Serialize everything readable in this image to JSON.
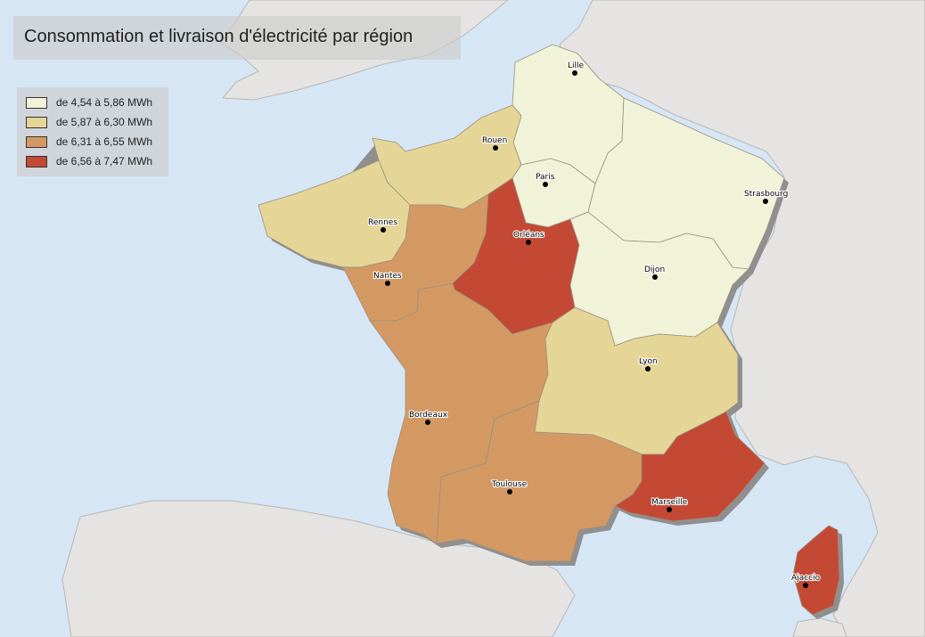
{
  "title": "Consommation et livraison d'électricité par région",
  "legend": [
    {
      "label": "de 4,54 à 5,86 MWh",
      "color": "#f0f3d8"
    },
    {
      "label": "de 5,87 à 6,30 MWh",
      "color": "#e5d597"
    },
    {
      "label": "de 6,31 à 6,55 MWh",
      "color": "#d49963"
    },
    {
      "label": "de 6,56 à 7,47 MWh",
      "color": "#c44934"
    }
  ],
  "colors": {
    "sea": "#d6e6f5",
    "land": "#e6e4e2"
  },
  "cities": {
    "lille": "Lille",
    "rouen": "Rouen",
    "paris": "Paris",
    "strasbourg": "Strasbourg",
    "rennes": "Rennes",
    "orleans": "Orléans",
    "nantes": "Nantes",
    "dijon": "Dijon",
    "lyon": "Lyon",
    "bordeaux": "Bordeaux",
    "toulouse": "Toulouse",
    "marseille": "Marseille",
    "ajaccio": "Ajaccio"
  }
}
